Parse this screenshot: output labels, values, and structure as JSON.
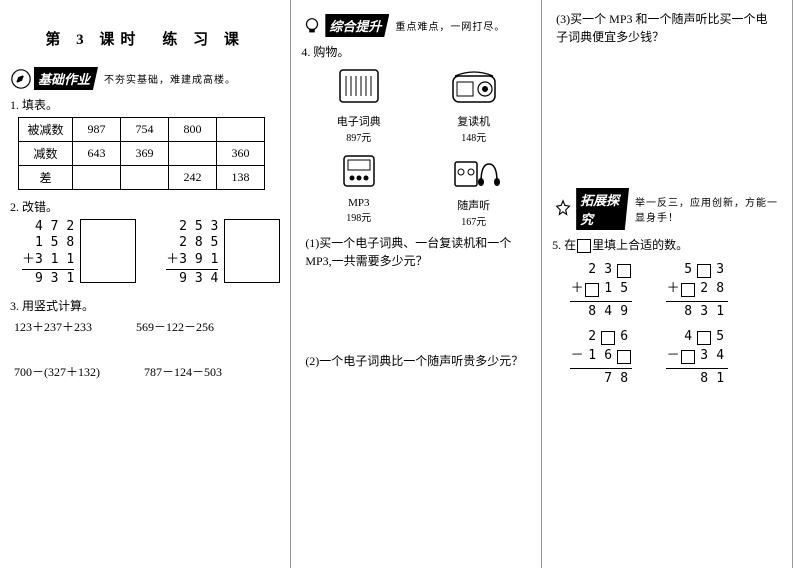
{
  "title": "第 3 课时　练 习 课",
  "b1": {
    "label": "基础作业",
    "sub": "不夯实基础，难建成高楼。"
  },
  "b2": {
    "label": "综合提升",
    "sub": "重点难点，一网打尽。"
  },
  "b3": {
    "label": "拓展探究",
    "sub": "举一反三，应用创新，方能一显身手！"
  },
  "q1": "1. 填表。",
  "tbl": {
    "h": [
      "被减数",
      "987",
      "754",
      "800",
      ""
    ],
    "r2": [
      "减数",
      "643",
      "369",
      "",
      "360"
    ],
    "r3": [
      "差",
      "",
      "",
      "242",
      "138"
    ]
  },
  "q2": "2. 改错。",
  "c1": {
    "a": "4 7 2",
    "b": "1 5 8",
    "c": "3 1 1",
    "s": "9 3 1"
  },
  "c2": {
    "a": "2 5 3",
    "b": "2 8 5",
    "c": "3 9 1",
    "s": "9 3 4"
  },
  "q3": "3. 用竖式计算。",
  "e1": "123＋237＋233",
  "e2": "569－122－256",
  "e3": "700－(327＋132)",
  "e4": "787－124－503",
  "q4": "4. 购物。",
  "items": {
    "a": {
      "nm": "电子词典",
      "pr": "897元"
    },
    "b": {
      "nm": "复读机",
      "pr": "148元"
    },
    "c": {
      "nm": "MP3",
      "pr": "198元"
    },
    "d": {
      "nm": "随声听",
      "pr": "167元"
    }
  },
  "s1": "(1)买一个电子词典、一台复读机和一个 MP3,一共需要多少元？",
  "s2": "(2)一个电子词典比一个随声听贵多少元？",
  "s3": "(3)买一个 MP3 和一个随声听比买一个电子词典便宜多少钱？",
  "q5": "5. 在　　里填上合适的数。",
  "f1": {
    "a": [
      "2",
      "3",
      "□"
    ],
    "b": [
      "□",
      "1",
      "5"
    ],
    "s": [
      "8",
      "4",
      "9"
    ],
    "op": "＋"
  },
  "f2": {
    "a": [
      "5",
      "□",
      "3"
    ],
    "b": [
      "□",
      "2",
      "8"
    ],
    "s": [
      "8",
      "3",
      "1"
    ],
    "op": "＋"
  },
  "f3": {
    "a": [
      "2",
      "□",
      "6"
    ],
    "b": [
      "1",
      "6",
      "□"
    ],
    "s": [
      "",
      "7",
      "8"
    ],
    "op": "－"
  },
  "f4": {
    "a": [
      "4",
      "□",
      "5"
    ],
    "b": [
      "□",
      "3",
      "4"
    ],
    "s": [
      "",
      "8",
      "1"
    ],
    "op": "－"
  }
}
